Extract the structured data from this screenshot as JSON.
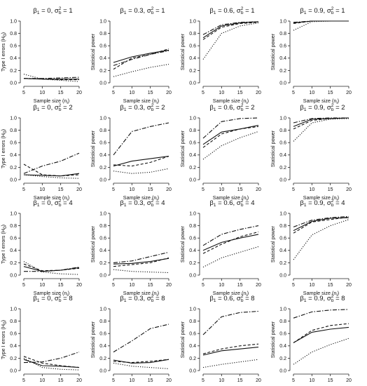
{
  "chart_data": [
    {
      "type": "line",
      "title": {
        "beta": "0",
        "sigma2": "1"
      },
      "xlabel": "Sample size (n",
      "ylabel": "Type I errors (H",
      "ylim": [
        0,
        1
      ],
      "yticks": [
        "0.0",
        "0.2",
        "0.4",
        "0.6",
        "0.8",
        "1.0"
      ],
      "x": [
        5,
        10,
        15,
        20
      ],
      "xticks": [
        "5",
        "10",
        "15",
        "20"
      ],
      "series": [
        {
          "style": "solid",
          "values": [
            0.07,
            0.06,
            0.06,
            0.06
          ]
        },
        {
          "style": "dashed",
          "values": [
            0.07,
            0.06,
            0.05,
            0.05
          ]
        },
        {
          "style": "dotted",
          "values": [
            0.14,
            0.06,
            0.04,
            0.02
          ]
        },
        {
          "style": "dashdot",
          "values": [
            0.07,
            0.07,
            0.08,
            0.09
          ]
        }
      ]
    },
    {
      "type": "line",
      "title": {
        "beta": "0.3",
        "sigma2": "1"
      },
      "xlabel": "Sample size (n",
      "ylabel": "Statistical power",
      "ylim": [
        0,
        1
      ],
      "yticks": [
        "0.0",
        "0.2",
        "0.4",
        "0.6",
        "0.8",
        "1.0"
      ],
      "x": [
        5,
        10,
        15,
        20
      ],
      "xticks": [
        "5",
        "10",
        "15",
        "20"
      ],
      "series": [
        {
          "style": "solid",
          "values": [
            0.33,
            0.42,
            0.48,
            0.53
          ]
        },
        {
          "style": "dashed",
          "values": [
            0.22,
            0.4,
            0.46,
            0.55
          ]
        },
        {
          "style": "dotted",
          "values": [
            0.1,
            0.18,
            0.25,
            0.3
          ]
        },
        {
          "style": "dashdot",
          "values": [
            0.28,
            0.38,
            0.46,
            0.52
          ]
        }
      ]
    },
    {
      "type": "line",
      "title": {
        "beta": "0.6",
        "sigma2": "1"
      },
      "xlabel": "Sample size (n",
      "ylabel": "Statistical power",
      "ylim": [
        0,
        1
      ],
      "yticks": [
        "0.0",
        "0.2",
        "0.4",
        "0.6",
        "0.8",
        "1.0"
      ],
      "x": [
        5,
        10,
        15,
        20
      ],
      "xticks": [
        "5",
        "10",
        "15",
        "20"
      ],
      "series": [
        {
          "style": "solid",
          "values": [
            0.73,
            0.92,
            0.97,
            0.99
          ]
        },
        {
          "style": "dashed",
          "values": [
            0.7,
            0.9,
            0.96,
            0.98
          ]
        },
        {
          "style": "dotted",
          "values": [
            0.38,
            0.8,
            0.92,
            0.97
          ]
        },
        {
          "style": "dashdot",
          "values": [
            0.78,
            0.94,
            0.98,
            0.99
          ]
        }
      ]
    },
    {
      "type": "line",
      "title": {
        "beta": "0.9",
        "sigma2": "1"
      },
      "xlabel": "Sample size (n",
      "ylabel": "Statistical power",
      "ylim": [
        0,
        1
      ],
      "yticks": [
        "0.0",
        "0.2",
        "0.4",
        "0.6",
        "0.8",
        "1.0"
      ],
      "x": [
        5,
        10,
        15,
        20
      ],
      "xticks": [
        "5",
        "10",
        "15",
        "20"
      ],
      "series": [
        {
          "style": "solid",
          "values": [
            0.97,
            1.0,
            1.0,
            1.0
          ]
        },
        {
          "style": "dashed",
          "values": [
            0.96,
            1.0,
            1.0,
            1.0
          ]
        },
        {
          "style": "dotted",
          "values": [
            0.85,
            0.99,
            1.0,
            1.0
          ]
        },
        {
          "style": "dashdot",
          "values": [
            0.98,
            1.0,
            1.0,
            1.0
          ]
        }
      ]
    },
    {
      "type": "line",
      "title": {
        "beta": "0",
        "sigma2": "2"
      },
      "xlabel": "Sample size (n",
      "ylabel": "Type I errors (H",
      "ylim": [
        0,
        1
      ],
      "yticks": [
        "0.0",
        "0.2",
        "0.4",
        "0.6",
        "0.8",
        "1.0"
      ],
      "x": [
        5,
        10,
        15,
        20
      ],
      "xticks": [
        "5",
        "10",
        "15",
        "20"
      ],
      "series": [
        {
          "style": "solid",
          "values": [
            0.08,
            0.07,
            0.06,
            0.1
          ]
        },
        {
          "style": "dashed",
          "values": [
            0.25,
            0.08,
            0.06,
            0.08
          ]
        },
        {
          "style": "dotted",
          "values": [
            0.08,
            0.05,
            0.03,
            0.02
          ]
        },
        {
          "style": "dashdot",
          "values": [
            0.1,
            0.22,
            0.3,
            0.43
          ]
        }
      ]
    },
    {
      "type": "line",
      "title": {
        "beta": "0.3",
        "sigma2": "2"
      },
      "xlabel": "Sample size (n",
      "ylabel": "Statistical power",
      "ylim": [
        0,
        1
      ],
      "yticks": [
        "0.0",
        "0.2",
        "0.4",
        "0.6",
        "0.8",
        "1.0"
      ],
      "x": [
        5,
        10,
        15,
        20
      ],
      "xticks": [
        "5",
        "10",
        "15",
        "20"
      ],
      "series": [
        {
          "style": "solid",
          "values": [
            0.22,
            0.3,
            0.34,
            0.38
          ]
        },
        {
          "style": "dashed",
          "values": [
            0.24,
            0.22,
            0.28,
            0.38
          ]
        },
        {
          "style": "dotted",
          "values": [
            0.14,
            0.1,
            0.12,
            0.18
          ]
        },
        {
          "style": "dashdot",
          "values": [
            0.4,
            0.78,
            0.86,
            0.92
          ]
        }
      ]
    },
    {
      "type": "line",
      "title": {
        "beta": "0.6",
        "sigma2": "2"
      },
      "xlabel": "Sample size (n",
      "ylabel": "Statistical power",
      "ylim": [
        0,
        1
      ],
      "yticks": [
        "0.0",
        "0.2",
        "0.4",
        "0.6",
        "0.8",
        "1.0"
      ],
      "x": [
        5,
        10,
        15,
        20
      ],
      "xticks": [
        "5",
        "10",
        "15",
        "20"
      ],
      "series": [
        {
          "style": "solid",
          "values": [
            0.57,
            0.77,
            0.82,
            0.88
          ]
        },
        {
          "style": "dashed",
          "values": [
            0.52,
            0.74,
            0.82,
            0.86
          ]
        },
        {
          "style": "dotted",
          "values": [
            0.33,
            0.55,
            0.68,
            0.78
          ]
        },
        {
          "style": "dashdot",
          "values": [
            0.67,
            0.94,
            0.99,
            1.0
          ]
        }
      ]
    },
    {
      "type": "line",
      "title": {
        "beta": "0.9",
        "sigma2": "2"
      },
      "xlabel": "Sample size (n",
      "ylabel": "Statistical power",
      "ylim": [
        0,
        1
      ],
      "yticks": [
        "0.0",
        "0.2",
        "0.4",
        "0.6",
        "0.8",
        "1.0"
      ],
      "x": [
        5,
        10,
        15,
        20
      ],
      "xticks": [
        "5",
        "10",
        "15",
        "20"
      ],
      "series": [
        {
          "style": "solid",
          "values": [
            0.86,
            0.98,
            0.99,
            1.0
          ]
        },
        {
          "style": "dashed",
          "values": [
            0.82,
            0.96,
            0.99,
            1.0
          ]
        },
        {
          "style": "dotted",
          "values": [
            0.62,
            0.92,
            0.98,
            0.99
          ]
        },
        {
          "style": "dashdot",
          "values": [
            0.92,
            0.99,
            1.0,
            1.0
          ]
        }
      ]
    },
    {
      "type": "line",
      "title": {
        "beta": "0",
        "sigma2": "4"
      },
      "xlabel": "Sample size (n",
      "ylabel": "Type I errors (H",
      "ylim": [
        0,
        1
      ],
      "yticks": [
        "0.0",
        "0.2",
        "0.4",
        "0.6",
        "0.8",
        "1.0"
      ],
      "x": [
        5,
        10,
        15,
        20
      ],
      "xticks": [
        "5",
        "10",
        "15",
        "20"
      ],
      "series": [
        {
          "style": "solid",
          "values": [
            0.14,
            0.06,
            0.08,
            0.12
          ]
        },
        {
          "style": "dashed",
          "values": [
            0.18,
            0.07,
            0.08,
            0.11
          ]
        },
        {
          "style": "dotted",
          "values": [
            0.22,
            0.05,
            0.02,
            0.01
          ]
        },
        {
          "style": "dashdot",
          "values": [
            0.06,
            0.06,
            0.08,
            0.13
          ]
        }
      ]
    },
    {
      "type": "line",
      "title": {
        "beta": "0.3",
        "sigma2": "4"
      },
      "xlabel": "Sample size (n",
      "ylabel": "Statistical power",
      "ylim": [
        0,
        1
      ],
      "yticks": [
        "0.0",
        "0.2",
        "0.4",
        "0.6",
        "0.8",
        "1.0"
      ],
      "x": [
        5,
        10,
        15,
        20
      ],
      "xticks": [
        "5",
        "10",
        "15",
        "20"
      ],
      "series": [
        {
          "style": "solid",
          "values": [
            0.18,
            0.19,
            0.22,
            0.27
          ]
        },
        {
          "style": "dashed",
          "values": [
            0.14,
            0.17,
            0.2,
            0.28
          ]
        },
        {
          "style": "dotted",
          "values": [
            0.09,
            0.06,
            0.05,
            0.04
          ]
        },
        {
          "style": "dashdot",
          "values": [
            0.2,
            0.23,
            0.3,
            0.37
          ]
        }
      ]
    },
    {
      "type": "line",
      "title": {
        "beta": "0.6",
        "sigma2": "4"
      },
      "xlabel": "Sample size (n",
      "ylabel": "Statistical power",
      "ylim": [
        0,
        1
      ],
      "yticks": [
        "0.0",
        "0.2",
        "0.4",
        "0.6",
        "0.8",
        "1.0"
      ],
      "x": [
        5,
        10,
        15,
        20
      ],
      "xticks": [
        "5",
        "10",
        "15",
        "20"
      ],
      "series": [
        {
          "style": "solid",
          "values": [
            0.4,
            0.53,
            0.6,
            0.66
          ]
        },
        {
          "style": "dashed",
          "values": [
            0.35,
            0.5,
            0.62,
            0.7
          ]
        },
        {
          "style": "dotted",
          "values": [
            0.13,
            0.28,
            0.37,
            0.46
          ]
        },
        {
          "style": "dashdot",
          "values": [
            0.48,
            0.66,
            0.74,
            0.8
          ]
        }
      ]
    },
    {
      "type": "line",
      "title": {
        "beta": "0.9",
        "sigma2": "4"
      },
      "xlabel": "Sample size (n",
      "ylabel": "Statistical power",
      "ylim": [
        0,
        1
      ],
      "yticks": [
        "0.0",
        "0.2",
        "0.4",
        "0.6",
        "0.8",
        "1.0"
      ],
      "x": [
        5,
        10,
        15,
        20
      ],
      "xticks": [
        "5",
        "10",
        "15",
        "20"
      ],
      "series": [
        {
          "style": "solid",
          "values": [
            0.72,
            0.87,
            0.92,
            0.93
          ]
        },
        {
          "style": "dashed",
          "values": [
            0.68,
            0.86,
            0.9,
            0.94
          ]
        },
        {
          "style": "dotted",
          "values": [
            0.25,
            0.65,
            0.8,
            0.9
          ]
        },
        {
          "style": "dashdot",
          "values": [
            0.78,
            0.89,
            0.93,
            0.95
          ]
        }
      ]
    },
    {
      "type": "line",
      "title": {
        "beta": "0",
        "sigma2": "8"
      },
      "xlabel": "Sample size (n",
      "ylabel": "Type I errors (H",
      "ylim": [
        0,
        1
      ],
      "yticks": [
        "0.0",
        "0.2",
        "0.4",
        "0.6",
        "0.8",
        "1.0"
      ],
      "x": [
        5,
        10,
        15,
        20
      ],
      "xticks": [
        "5",
        "10",
        "15",
        "20"
      ],
      "series": [
        {
          "style": "solid",
          "values": [
            0.18,
            0.08,
            0.07,
            0.05
          ]
        },
        {
          "style": "dashed",
          "values": [
            0.23,
            0.12,
            0.08,
            0.05
          ]
        },
        {
          "style": "dotted",
          "values": [
            0.2,
            0.05,
            0.02,
            0.01
          ]
        },
        {
          "style": "dashdot",
          "values": [
            0.13,
            0.14,
            0.2,
            0.3
          ]
        }
      ]
    },
    {
      "type": "line",
      "title": {
        "beta": "0.3",
        "sigma2": "8"
      },
      "xlabel": "Sample size (n",
      "ylabel": "Statistical power",
      "ylim": [
        0,
        1
      ],
      "yticks": [
        "0.0",
        "0.2",
        "0.4",
        "0.6",
        "0.8",
        "1.0"
      ],
      "x": [
        5,
        10,
        15,
        20
      ],
      "xticks": [
        "5",
        "10",
        "15",
        "20"
      ],
      "series": [
        {
          "style": "solid",
          "values": [
            0.17,
            0.12,
            0.13,
            0.18
          ]
        },
        {
          "style": "dashed",
          "values": [
            0.15,
            0.13,
            0.15,
            0.18
          ]
        },
        {
          "style": "dotted",
          "values": [
            0.12,
            0.07,
            0.05,
            0.03
          ]
        },
        {
          "style": "dashdot",
          "values": [
            0.3,
            0.48,
            0.68,
            0.75
          ]
        }
      ]
    },
    {
      "type": "line",
      "title": {
        "beta": "0.6",
        "sigma2": "8"
      },
      "xlabel": "Sample size (n",
      "ylabel": "Statistical power",
      "ylim": [
        0,
        1
      ],
      "yticks": [
        "0.0",
        "0.2",
        "0.4",
        "0.6",
        "0.8",
        "1.0"
      ],
      "x": [
        5,
        10,
        15,
        20
      ],
      "xticks": [
        "5",
        "10",
        "15",
        "20"
      ],
      "series": [
        {
          "style": "solid",
          "values": [
            0.25,
            0.32,
            0.35,
            0.38
          ]
        },
        {
          "style": "dashed",
          "values": [
            0.27,
            0.35,
            0.4,
            0.43
          ]
        },
        {
          "style": "dotted",
          "values": [
            0.05,
            0.1,
            0.14,
            0.18
          ]
        },
        {
          "style": "dashdot",
          "values": [
            0.58,
            0.87,
            0.94,
            0.96
          ]
        }
      ]
    },
    {
      "type": "line",
      "title": {
        "beta": "0.9",
        "sigma2": "8"
      },
      "xlabel": "Sample size (n",
      "ylabel": "Statistical power",
      "ylim": [
        0,
        1
      ],
      "yticks": [
        "0.0",
        "0.2",
        "0.4",
        "0.6",
        "0.8",
        "1.0"
      ],
      "x": [
        5,
        10,
        15,
        20
      ],
      "xticks": [
        "5",
        "10",
        "15",
        "20"
      ],
      "series": [
        {
          "style": "solid",
          "values": [
            0.45,
            0.62,
            0.67,
            0.7
          ]
        },
        {
          "style": "dashed",
          "values": [
            0.45,
            0.65,
            0.73,
            0.76
          ]
        },
        {
          "style": "dotted",
          "values": [
            0.1,
            0.3,
            0.42,
            0.52
          ]
        },
        {
          "style": "dashdot",
          "values": [
            0.85,
            0.95,
            0.98,
            0.99
          ]
        }
      ]
    }
  ]
}
